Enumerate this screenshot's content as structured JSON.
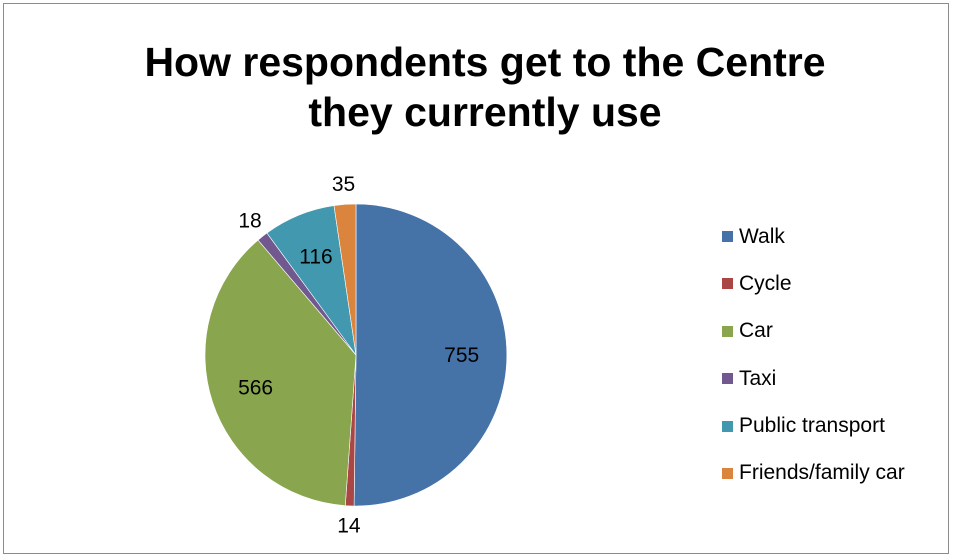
{
  "chart_data": {
    "type": "pie",
    "title_lines": [
      "How respondents get to the Centre",
      "they currently use"
    ],
    "categories": [
      "Walk",
      "Cycle",
      "Car",
      "Taxi",
      "Public transport",
      "Friends/family car"
    ],
    "values": [
      755,
      14,
      566,
      18,
      116,
      35
    ],
    "colors": [
      "#4572a7",
      "#aa4643",
      "#89a54e",
      "#71588f",
      "#4198af",
      "#db843d"
    ],
    "legend_position": "right",
    "data_labels": true
  }
}
